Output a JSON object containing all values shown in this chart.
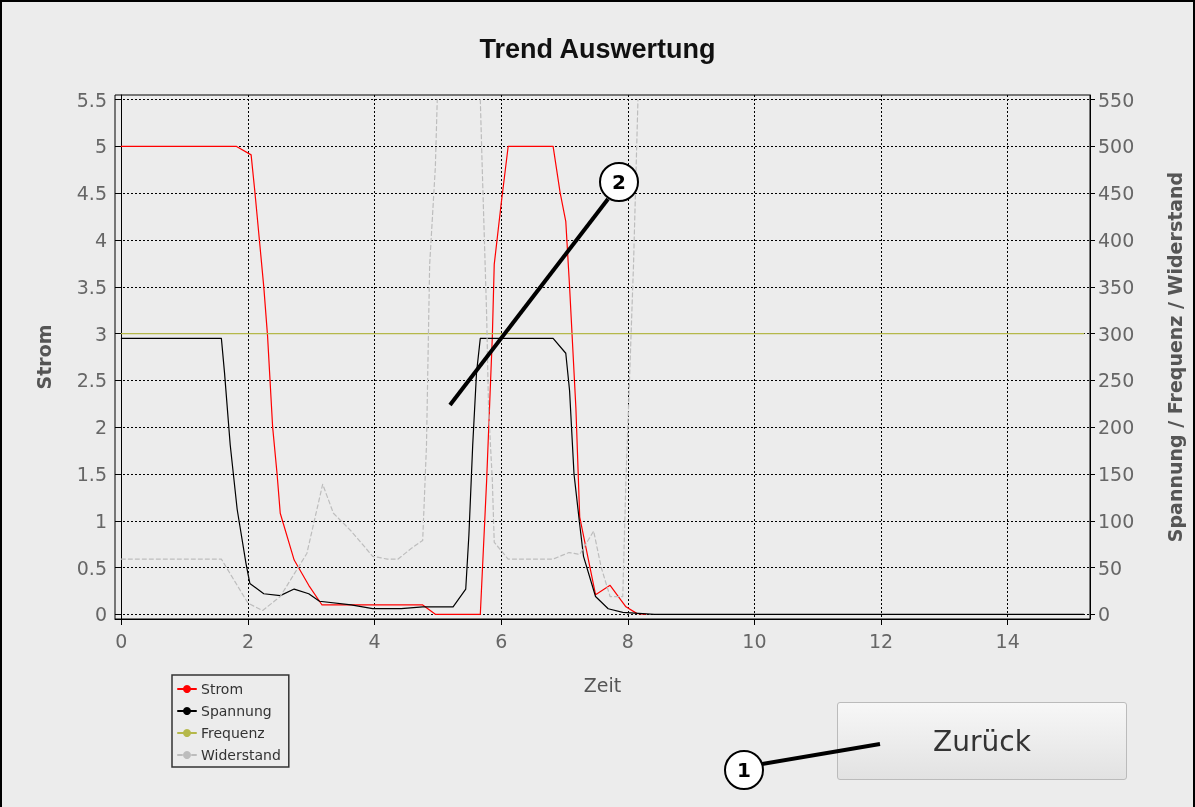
{
  "chart_data": {
    "type": "line",
    "title": "Trend Auswertung",
    "xlabel": "Zeit",
    "ylabel": "Strom",
    "y2label": "Spannung / Frequenz / Widerstand",
    "xlim": [
      -0.1,
      15.3
    ],
    "xticks": [
      0,
      2,
      4,
      6,
      8,
      10,
      12,
      14
    ],
    "ylim": [
      -0.05,
      5.55
    ],
    "yticks": [
      0,
      0.5,
      1,
      1.5,
      2,
      2.5,
      3,
      3.5,
      4,
      4.5,
      5,
      5.5
    ],
    "y2lim": [
      -5,
      555
    ],
    "y2ticks": [
      0,
      50,
      100,
      150,
      200,
      250,
      300,
      350,
      400,
      450,
      500,
      550
    ],
    "grid": true,
    "legend": "bottom left",
    "marker": "none",
    "annotations": [
      "Zurück",
      "1",
      "2"
    ],
    "series": [
      {
        "name": "Strom",
        "color": "#ff0000",
        "line_style": "solid",
        "x": [
          0,
          1.82,
          2.05,
          2.11,
          2.25,
          2.31,
          2.39,
          2.46,
          2.51,
          2.73,
          2.96,
          3.17,
          4.76,
          4.96,
          5.67,
          5.77,
          5.86,
          5.89,
          6.0,
          6.11,
          6.82,
          6.93,
          7.02,
          7.08,
          7.18,
          7.24,
          7.49,
          7.72,
          7.97,
          8.14,
          8.28
        ],
        "values": [
          5,
          5,
          4.91,
          4.51,
          3.5,
          2.97,
          2.0,
          1.5,
          1.08,
          0.58,
          0.31,
          0.1,
          0.1,
          0,
          0,
          1.43,
          2.97,
          3.74,
          4.39,
          5,
          5,
          4.51,
          4.2,
          3.5,
          2.2,
          1.04,
          0.21,
          0.31,
          0.08,
          0.01,
          0
        ]
      },
      {
        "name": "Spannung",
        "color": "#000000",
        "line_style": "solid",
        "axis": "y2",
        "x": [
          0,
          1.58,
          1.63,
          1.72,
          1.83,
          1.97,
          2.03,
          2.25,
          2.51,
          2.73,
          2.96,
          3.13,
          3.63,
          3.97,
          4.42,
          4.76,
          5.24,
          5.44,
          5.49,
          5.55,
          5.61,
          5.67,
          6.82,
          7.02,
          7.08,
          7.15,
          7.24,
          7.3,
          7.49,
          7.69,
          7.92,
          8.42,
          15.2
        ],
        "values": [
          295,
          295,
          258,
          181,
          112,
          54,
          33,
          22,
          20,
          27,
          22,
          14,
          10,
          6,
          6,
          8,
          8,
          27,
          85,
          181,
          258,
          295,
          295,
          279,
          239,
          150,
          96,
          62,
          19,
          6,
          2,
          0,
          0
        ]
      },
      {
        "name": "Frequenz",
        "color": "#b5b84a",
        "line_style": "solid",
        "axis": "y2",
        "x": [
          0,
          15.2
        ],
        "values": [
          300,
          300
        ]
      },
      {
        "name": "Widerstand",
        "color": "#bdbdbd",
        "line_style": "dashed",
        "axis": "y2",
        "x": [
          0,
          1.58,
          1.83,
          2.0,
          2.23,
          2.51,
          2.93,
          3.18,
          3.35,
          3.63,
          3.97,
          4.2,
          4.37,
          4.59,
          4.76,
          4.82,
          4.87,
          4.96,
          4.99,
          5.0,
          5.66,
          5.67,
          5.7,
          5.77,
          5.8,
          5.86,
          5.89,
          6.11,
          6.82,
          7.07,
          7.24,
          7.46,
          7.58,
          7.72,
          7.92,
          7.97,
          8.03,
          8.09,
          8.16
        ],
        "values": [
          59,
          59,
          31,
          12,
          4,
          19,
          65,
          139,
          108,
          89,
          62,
          59,
          59,
          71,
          79,
          181,
          374,
          478,
          550,
          null,
          null,
          550,
          478,
          320,
          220,
          143,
          77,
          59,
          59,
          66,
          64,
          89,
          50,
          19,
          19,
          143,
          258,
          374,
          550
        ]
      }
    ]
  }
}
